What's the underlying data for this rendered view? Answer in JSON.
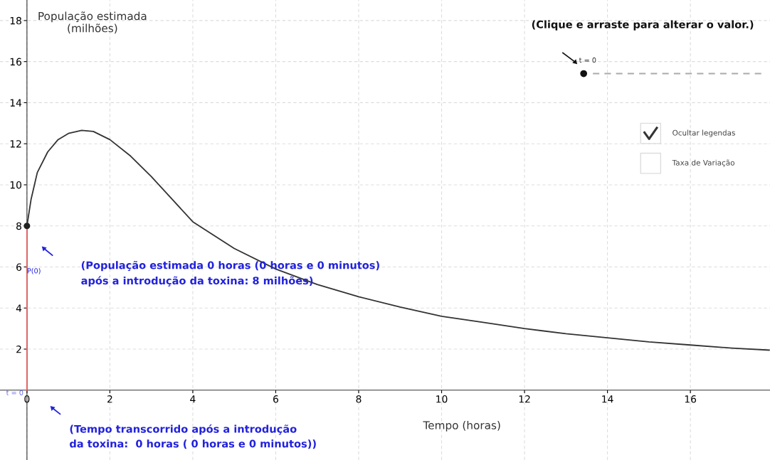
{
  "chart_data": {
    "type": "line",
    "xlabel": "Tempo (horas)",
    "ylabel": "População estimada\n(milhões)",
    "xlim": [
      -0.65,
      17.92
    ],
    "ylim": [
      -3.4,
      19
    ],
    "xticks": [
      0,
      2,
      4,
      6,
      8,
      10,
      12,
      14,
      16
    ],
    "yticks": [
      2,
      4,
      6,
      8,
      10,
      12,
      14,
      16,
      18
    ],
    "grid": true,
    "marker": "none",
    "line_style": "solid",
    "series": [
      {
        "color": "#333333",
        "x": [
          0,
          0.1,
          0.25,
          0.5,
          0.75,
          1,
          1.32,
          1.6,
          2,
          2.5,
          3,
          3.5,
          4,
          5,
          6,
          7,
          8,
          9,
          10,
          11,
          12,
          13,
          14,
          15,
          16,
          17,
          17.9
        ],
        "values": [
          8,
          9.3,
          10.6,
          11.6,
          12.2,
          12.5,
          12.65,
          12.6,
          12.2,
          11.4,
          10.4,
          9.3,
          8.2,
          6.9,
          5.9,
          5.15,
          4.55,
          4.05,
          3.6,
          3.3,
          3.0,
          2.75,
          2.55,
          2.35,
          2.2,
          2.05,
          1.95
        ]
      },
      {
        "type": "line",
        "color": "#e06060",
        "x": [
          0,
          0
        ],
        "values": [
          0,
          8
        ]
      },
      {
        "type": "scatter",
        "color": "#222222",
        "x": [
          0
        ],
        "values": [
          8
        ]
      }
    ],
    "annotations": [
      "P(0)",
      "t = 0",
      "(População estimada 0 horas (0 horas e 0 minutos)\napós a introdução da toxina: 8 milhões)",
      "(Tempo transcorrido após a introdução\nda toxina:  0 horas ( 0 horas e 0 minutos))",
      "(Clique e arraste para alterar o valor.)",
      "t = 0",
      "Ocultar legendas",
      "Taxa de Variação"
    ]
  }
}
